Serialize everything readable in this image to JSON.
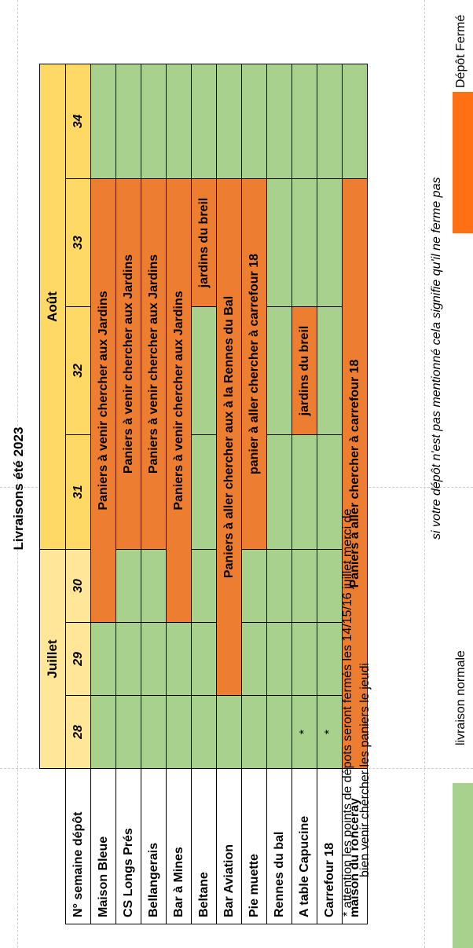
{
  "title": "Livraisons été 2023",
  "header": {
    "row_label": "N° semaine dépôt",
    "months": [
      "Juillet",
      "Août"
    ],
    "weeks": [
      "28",
      "29",
      "30",
      "31",
      "32",
      "33",
      "34"
    ]
  },
  "rows": [
    {
      "name": "Maison Bleue",
      "cells": [
        "",
        "",
        "",
        "",
        "",
        "",
        ""
      ],
      "spans": [
        {
          "text": "Paniers à venir chercher aux Jardins"
        }
      ]
    },
    {
      "name": "CS Longs Prés",
      "cells": [
        "",
        "",
        "",
        "",
        "",
        "",
        ""
      ],
      "spans": [
        {
          "text": "Paniers à venir chercher aux Jardins"
        }
      ]
    },
    {
      "name": "Bellangerais",
      "cells": [
        "",
        "",
        "",
        "",
        "",
        "",
        ""
      ],
      "spans": [
        {
          "text": "Paniers à venir chercher aux Jardins"
        }
      ]
    },
    {
      "name": "Bar à Mines",
      "cells": [
        "",
        "",
        "",
        "",
        "",
        "",
        ""
      ],
      "spans": [
        {
          "text": "Paniers à venir chercher aux Jardins"
        }
      ]
    },
    {
      "name": "Beltane",
      "cells": [
        "",
        "",
        "",
        "",
        "",
        "jardins du breil",
        ""
      ]
    },
    {
      "name": "Bar Aviation",
      "cells": [
        "",
        "",
        "",
        "",
        "",
        "",
        ""
      ],
      "spans": [
        {
          "text": "Paniers à aller chercher aux à la Rennes du Bal"
        }
      ]
    },
    {
      "name": "Pie muette",
      "cells": [
        "",
        "",
        "",
        "",
        "",
        "",
        ""
      ],
      "spans": [
        {
          "text": "panier à aller chercher à carrefour 18"
        }
      ]
    },
    {
      "name": "Rennes du bal",
      "cells": [
        "",
        "",
        "",
        "",
        "",
        "",
        ""
      ]
    },
    {
      "name": "A table Capucine",
      "cells": [
        "*",
        "",
        "",
        "",
        "jardins du breil",
        "",
        ""
      ]
    },
    {
      "name": "Carrefour 18",
      "cells": [
        "*",
        "",
        "",
        "",
        "",
        "",
        ""
      ]
    },
    {
      "name": "maison du ronceray",
      "cells": [
        "",
        "",
        "",
        "",
        "",
        "",
        ""
      ],
      "spans": [
        {
          "text": "Paniers à aller chercher à carrefour 18"
        }
      ]
    }
  ],
  "note": {
    "line1": "* attention les points de dépots seront fermés les 14/15/16 juillet merci de",
    "line2": "bien venir chercher les paniers le jeudi"
  },
  "disclaimer": "si votre dépôt n'est pas mentionné cela signifie qu'il ne ferme pas",
  "legend": {
    "normal": "livraison normale",
    "closed": "Dépôt Fermé",
    "normal_color": "#a9d18e",
    "closed_color": "#ff6f14"
  },
  "colors": {
    "green": "#a9d18e",
    "orange": "#ed7d31",
    "header_yellow": "#ffd966",
    "week_yellow": "#ffe699"
  }
}
